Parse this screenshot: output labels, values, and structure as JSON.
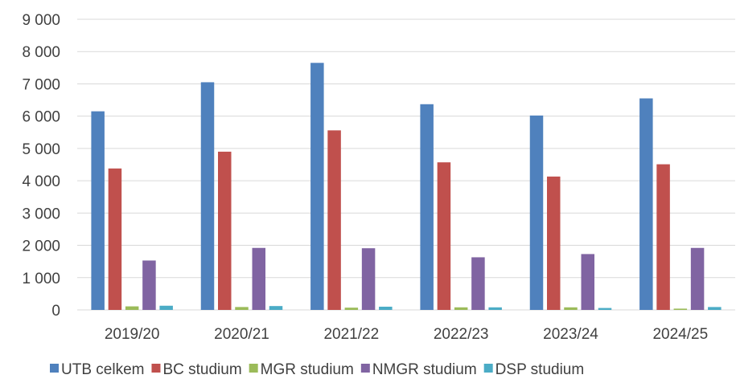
{
  "chart_data": {
    "type": "bar",
    "categories": [
      "2019/20",
      "2020/21",
      "2021/22",
      "2022/23",
      "2023/24",
      "2024/25"
    ],
    "series": [
      {
        "name": "UTB celkem",
        "color": "#4F81BD",
        "values": [
          6150,
          7050,
          7650,
          6370,
          6020,
          6550
        ]
      },
      {
        "name": "BC studium",
        "color": "#C0504D",
        "values": [
          4380,
          4900,
          5560,
          4570,
          4130,
          4510
        ]
      },
      {
        "name": "MGR studium",
        "color": "#9BBB59",
        "values": [
          110,
          90,
          70,
          80,
          80,
          40
        ]
      },
      {
        "name": "NMGR studium",
        "color": "#8064A2",
        "values": [
          1530,
          1920,
          1910,
          1630,
          1730,
          1920
        ]
      },
      {
        "name": "DSP studium",
        "color": "#4BACC6",
        "values": [
          130,
          120,
          100,
          80,
          60,
          90
        ]
      }
    ],
    "ylim": [
      0,
      9000
    ],
    "yticks": [
      0,
      1000,
      2000,
      3000,
      4000,
      5000,
      6000,
      7000,
      8000,
      9000
    ],
    "ytick_labels": [
      "0",
      "1 000",
      "2 000",
      "3 000",
      "4 000",
      "5 000",
      "6 000",
      "7 000",
      "8 000",
      "9 000"
    ],
    "grid": true,
    "legend_position": "bottom",
    "gridline_color": "#D9D9D9"
  }
}
